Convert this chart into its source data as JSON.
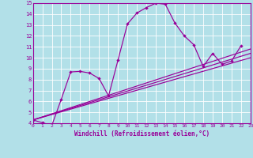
{
  "background_color": "#b2e0e8",
  "grid_color": "#ffffff",
  "line_color": "#990099",
  "xlabel": "Windchill (Refroidissement éolien,°C)",
  "xlim": [
    0,
    23
  ],
  "ylim": [
    4,
    15
  ],
  "xticks": [
    0,
    1,
    2,
    3,
    4,
    5,
    6,
    7,
    8,
    9,
    10,
    11,
    12,
    13,
    14,
    15,
    16,
    17,
    18,
    19,
    20,
    21,
    22,
    23
  ],
  "yticks": [
    4,
    5,
    6,
    7,
    8,
    9,
    10,
    11,
    12,
    13,
    14,
    15
  ],
  "line1_x": [
    0,
    1,
    2,
    3,
    4,
    5,
    6,
    7,
    8,
    9,
    10,
    11,
    12,
    13,
    14,
    15,
    16,
    17,
    18,
    19,
    20,
    21,
    22
  ],
  "line1_y": [
    4.3,
    4.05,
    3.8,
    6.2,
    8.7,
    8.75,
    8.6,
    8.1,
    6.5,
    9.8,
    13.1,
    14.1,
    14.6,
    15.0,
    14.9,
    13.2,
    12.0,
    11.2,
    9.2,
    10.4,
    9.4,
    9.7,
    11.1
  ],
  "line2_x": [
    0,
    23
  ],
  "line2_y": [
    4.3,
    10.8
  ],
  "line3_x": [
    0,
    23
  ],
  "line3_y": [
    4.3,
    10.4
  ],
  "line4_x": [
    0,
    23
  ],
  "line4_y": [
    4.3,
    10.0
  ]
}
